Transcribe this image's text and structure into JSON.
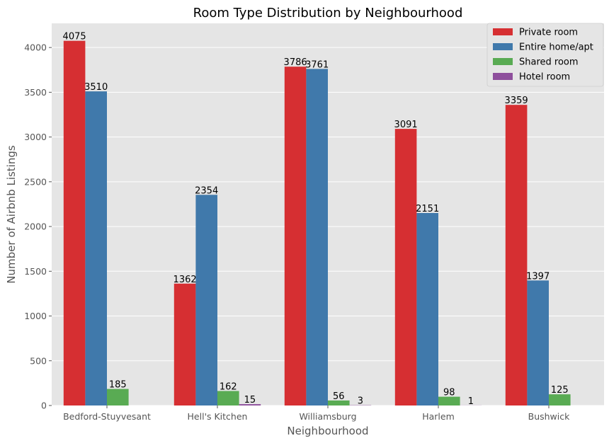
{
  "chart_data": {
    "type": "bar",
    "title": "Room Type Distribution by Neighbourhood",
    "xlabel": "Neighbourhood",
    "ylabel": "Number of Airbnb Listings",
    "categories": [
      "Bedford-Stuyvesant",
      "Hell's Kitchen",
      "Williamsburg",
      "Harlem",
      "Bushwick"
    ],
    "series": [
      {
        "name": "Private room",
        "color": "#d62f32",
        "values": [
          4075,
          1362,
          3786,
          3091,
          3359
        ],
        "labels": [
          "4075",
          "1362",
          "3786",
          "3091",
          "3359"
        ]
      },
      {
        "name": "Entire home/apt",
        "color": "#4079ab",
        "values": [
          3510,
          2354,
          3761,
          2151,
          1397
        ],
        "labels": [
          "3510",
          "2354",
          "3761",
          "2151",
          "1397"
        ]
      },
      {
        "name": "Shared room",
        "color": "#59ab53",
        "values": [
          185,
          162,
          56,
          98,
          125
        ],
        "labels": [
          "185",
          "162",
          "56",
          "98",
          "125"
        ]
      },
      {
        "name": "Hotel room",
        "color": "#8e4f9c",
        "values": [
          0,
          15,
          3,
          1,
          0
        ],
        "labels": [
          "",
          "15",
          "3",
          "1",
          ""
        ]
      }
    ],
    "ylim": [
      0,
      4270
    ],
    "yticks": [
      0,
      500,
      1000,
      1500,
      2000,
      2500,
      3000,
      3500,
      4000
    ],
    "ytick_labels": [
      "0",
      "500",
      "1000",
      "1500",
      "2000",
      "2500",
      "3000",
      "3500",
      "4000"
    ],
    "grid": true,
    "legend_position": "top-right",
    "colors": {
      "plot_background": "#e5e5e5",
      "grid": "#ffffff"
    }
  }
}
